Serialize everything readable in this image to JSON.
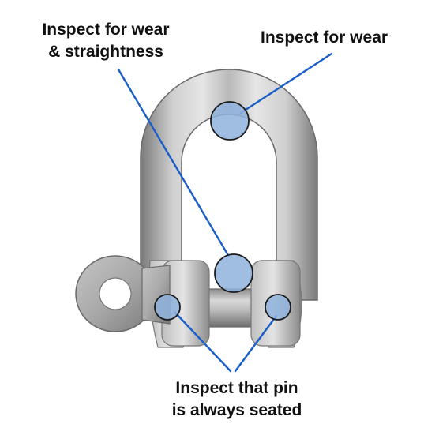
{
  "labels": {
    "wear_straightness": [
      "Inspect for wear",
      "& straightness"
    ],
    "wear": "Inspect for wear",
    "pin_seated": [
      "Inspect that pin",
      "is always seated"
    ]
  },
  "colors": {
    "callout_line": "#1a5fc8",
    "marker_fill": "#8fb2dd",
    "marker_stroke": "#1b1b1b",
    "steel_light": "#dcdcdc",
    "steel_mid": "#a8a8a8",
    "steel_dark": "#6e6e6e",
    "text": "#111111"
  }
}
